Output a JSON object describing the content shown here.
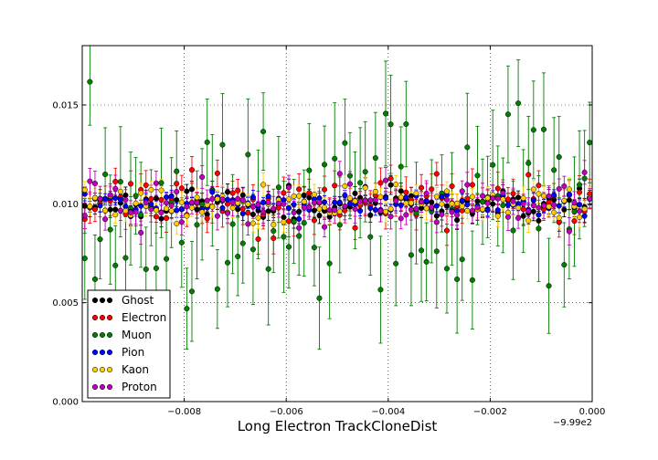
{
  "chart_data": {
    "type": "scatter",
    "title": "",
    "xlabel": "Long Electron TrackCloneDist",
    "ylabel": "",
    "x_offset_label": "−9.99e2",
    "xlim": [
      -0.01,
      0.0
    ],
    "ylim": [
      0.0,
      0.018
    ],
    "x_ticks": [
      -0.008,
      -0.006,
      -0.004,
      -0.002,
      0.0
    ],
    "x_tick_labels": [
      "−0.008",
      "−0.006",
      "−0.004",
      "−0.002",
      "0.000"
    ],
    "y_ticks": [
      0.0,
      0.005,
      0.01,
      0.015
    ],
    "y_tick_labels": [
      "0.000",
      "0.005",
      "0.010",
      "0.015"
    ],
    "grid": true,
    "legend_position": "lower-left",
    "n_bins": 100,
    "series": [
      {
        "name": "Ghost",
        "color": "#000000",
        "mean": 0.01,
        "spread": 0.0004,
        "err": 0.0004,
        "seed": 11
      },
      {
        "name": "Electron",
        "color": "#ff0000",
        "mean": 0.01,
        "spread": 0.0007,
        "err": 0.0007,
        "seed": 23
      },
      {
        "name": "Muon",
        "color": "#007f00",
        "mean": 0.01,
        "spread": 0.0025,
        "err": 0.0024,
        "seed": 37
      },
      {
        "name": "Pion",
        "color": "#0000ff",
        "mean": 0.01,
        "spread": 0.0003,
        "err": 0.0003,
        "seed": 41
      },
      {
        "name": "Kaon",
        "color": "#ffcc00",
        "mean": 0.01,
        "spread": 0.0005,
        "err": 0.0005,
        "seed": 53
      },
      {
        "name": "Proton",
        "color": "#bf00bf",
        "mean": 0.01,
        "spread": 0.0006,
        "err": 0.0006,
        "seed": 67
      }
    ]
  }
}
